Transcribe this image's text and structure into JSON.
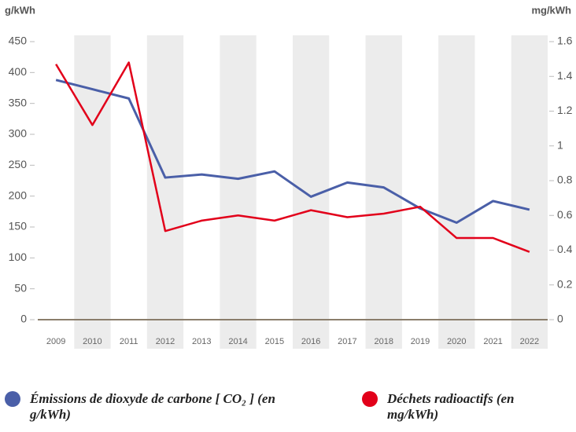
{
  "chart_data": {
    "type": "line",
    "y_axis_label": "g/kWh",
    "y2_axis_label": "mg/kWh",
    "categories": [
      "2009",
      "2010",
      "2011",
      "2012",
      "2013",
      "2014",
      "2015",
      "2016",
      "2017",
      "2018",
      "2019",
      "2020",
      "2021",
      "2022"
    ],
    "series": [
      {
        "name": "Émissions de dioxyde de carbone [ CO₂ ] (en g/kWh)",
        "color": "#4a5fa8",
        "axis": "y",
        "values": [
          388,
          373,
          358,
          230,
          235,
          228,
          240,
          199,
          222,
          214,
          180,
          157,
          192,
          178
        ]
      },
      {
        "name": "Déchets radioactifs (en mg/kWh)",
        "color": "#e2001a",
        "axis": "y2",
        "values": [
          1.47,
          1.12,
          1.48,
          0.51,
          0.57,
          0.6,
          0.57,
          0.63,
          0.59,
          0.61,
          0.65,
          0.47,
          0.47,
          0.39
        ]
      }
    ],
    "ylim": [
      0,
      450
    ],
    "yticks": [
      0,
      50,
      100,
      150,
      200,
      250,
      300,
      350,
      400,
      450
    ],
    "y2lim": [
      0,
      1.6
    ],
    "y2ticks": [
      0,
      0.2,
      0.4,
      0.6,
      0.8,
      1,
      1.2,
      1.4,
      1.6
    ],
    "band_color": "#ececec",
    "axis_color": "#8a7d6b",
    "grid": false
  }
}
